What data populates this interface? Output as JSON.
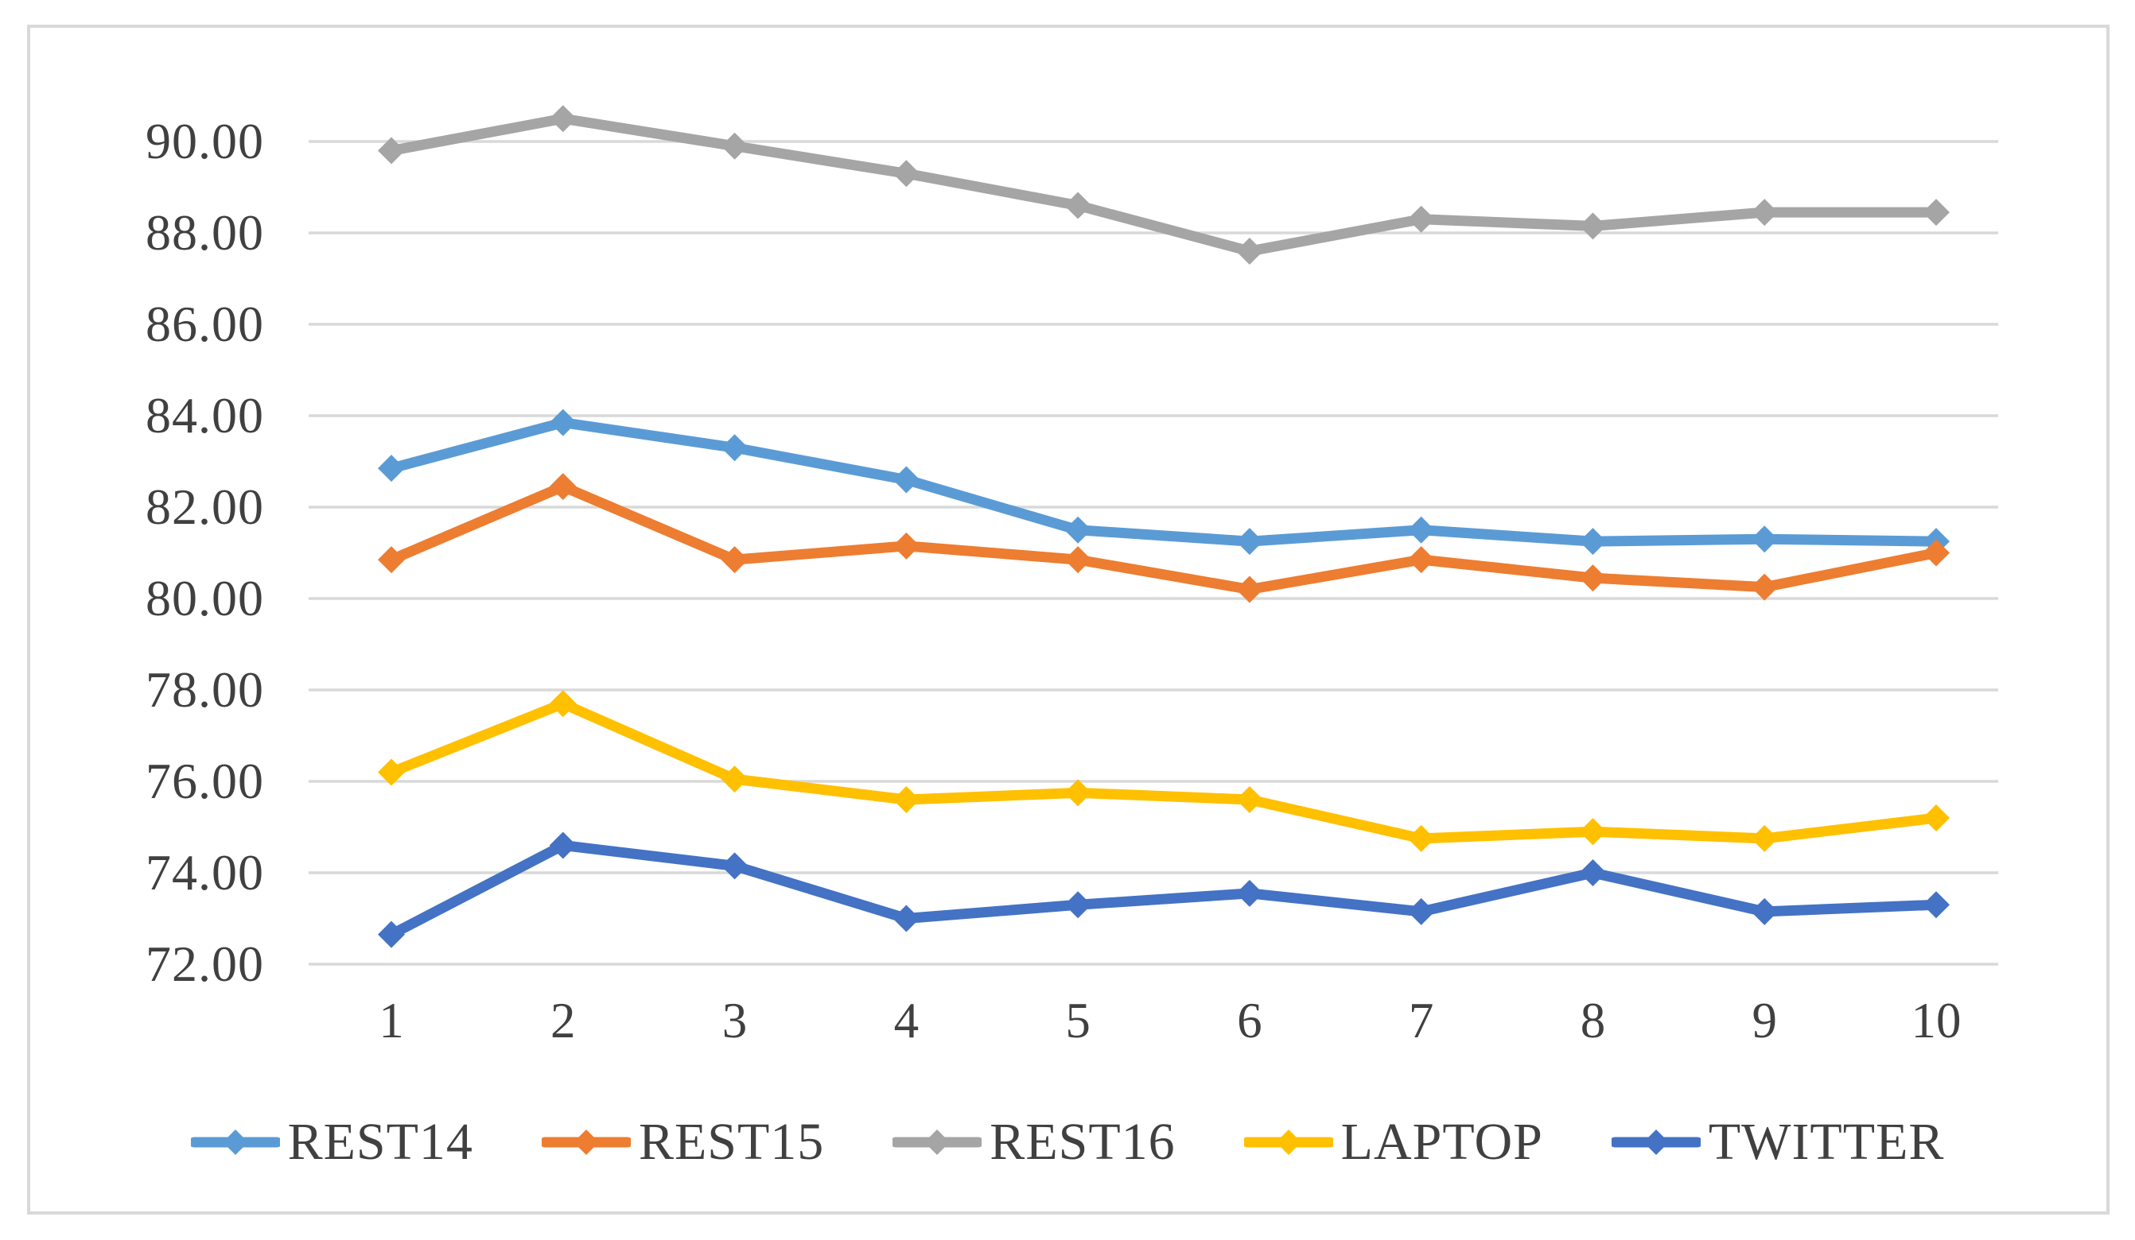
{
  "chart": {
    "title": "",
    "background_color": "#FFFFFF",
    "frame_border_color": "#D9D9D9",
    "gridline_color": "#D9D9D9",
    "axis_text_color": "#404040",
    "y_axis": {
      "min": 72,
      "max": 91,
      "major_unit": 2,
      "ticks": [
        {
          "value": 90,
          "label": "90.00"
        },
        {
          "value": 88,
          "label": "88.00"
        },
        {
          "value": 86,
          "label": "86.00"
        },
        {
          "value": 84,
          "label": "84.00"
        },
        {
          "value": 82,
          "label": "82.00"
        },
        {
          "value": 80,
          "label": "80.00"
        },
        {
          "value": 78,
          "label": "78.00"
        },
        {
          "value": 76,
          "label": "76.00"
        },
        {
          "value": 74,
          "label": "74.00"
        },
        {
          "value": 72,
          "label": "72.00"
        }
      ]
    },
    "x_axis": {
      "labels": [
        "1",
        "2",
        "3",
        "4",
        "5",
        "6",
        "7",
        "8",
        "9",
        "10"
      ]
    }
  },
  "chart_data": {
    "type": "line",
    "categories": [
      1,
      2,
      3,
      4,
      5,
      6,
      7,
      8,
      9,
      10
    ],
    "series": [
      {
        "name": "REST14",
        "color": "#5B9BD5",
        "values": [
          82.85,
          83.85,
          83.3,
          82.6,
          81.5,
          81.25,
          81.5,
          81.25,
          81.3,
          81.25
        ]
      },
      {
        "name": "REST15",
        "color": "#ED7D31",
        "values": [
          80.85,
          82.45,
          80.85,
          81.15,
          80.85,
          80.2,
          80.85,
          80.45,
          80.25,
          81.0
        ]
      },
      {
        "name": "REST16",
        "color": "#A5A5A5",
        "values": [
          89.8,
          90.5,
          89.9,
          89.3,
          88.6,
          87.6,
          88.3,
          88.15,
          88.45,
          88.45
        ]
      },
      {
        "name": "LAPTOP",
        "color": "#FFC000",
        "values": [
          76.2,
          77.7,
          76.05,
          75.6,
          75.75,
          75.6,
          74.75,
          74.9,
          74.75,
          75.2
        ]
      },
      {
        "name": "TWITTER",
        "color": "#4472C4",
        "values": [
          72.65,
          74.6,
          74.15,
          73.0,
          73.3,
          73.55,
          73.15,
          74.0,
          73.15,
          73.3
        ]
      }
    ],
    "title": "",
    "xlabel": "",
    "ylabel": "",
    "ylim": [
      72,
      91
    ],
    "grid": true,
    "marker": "diamond",
    "legend_position": "bottom"
  }
}
